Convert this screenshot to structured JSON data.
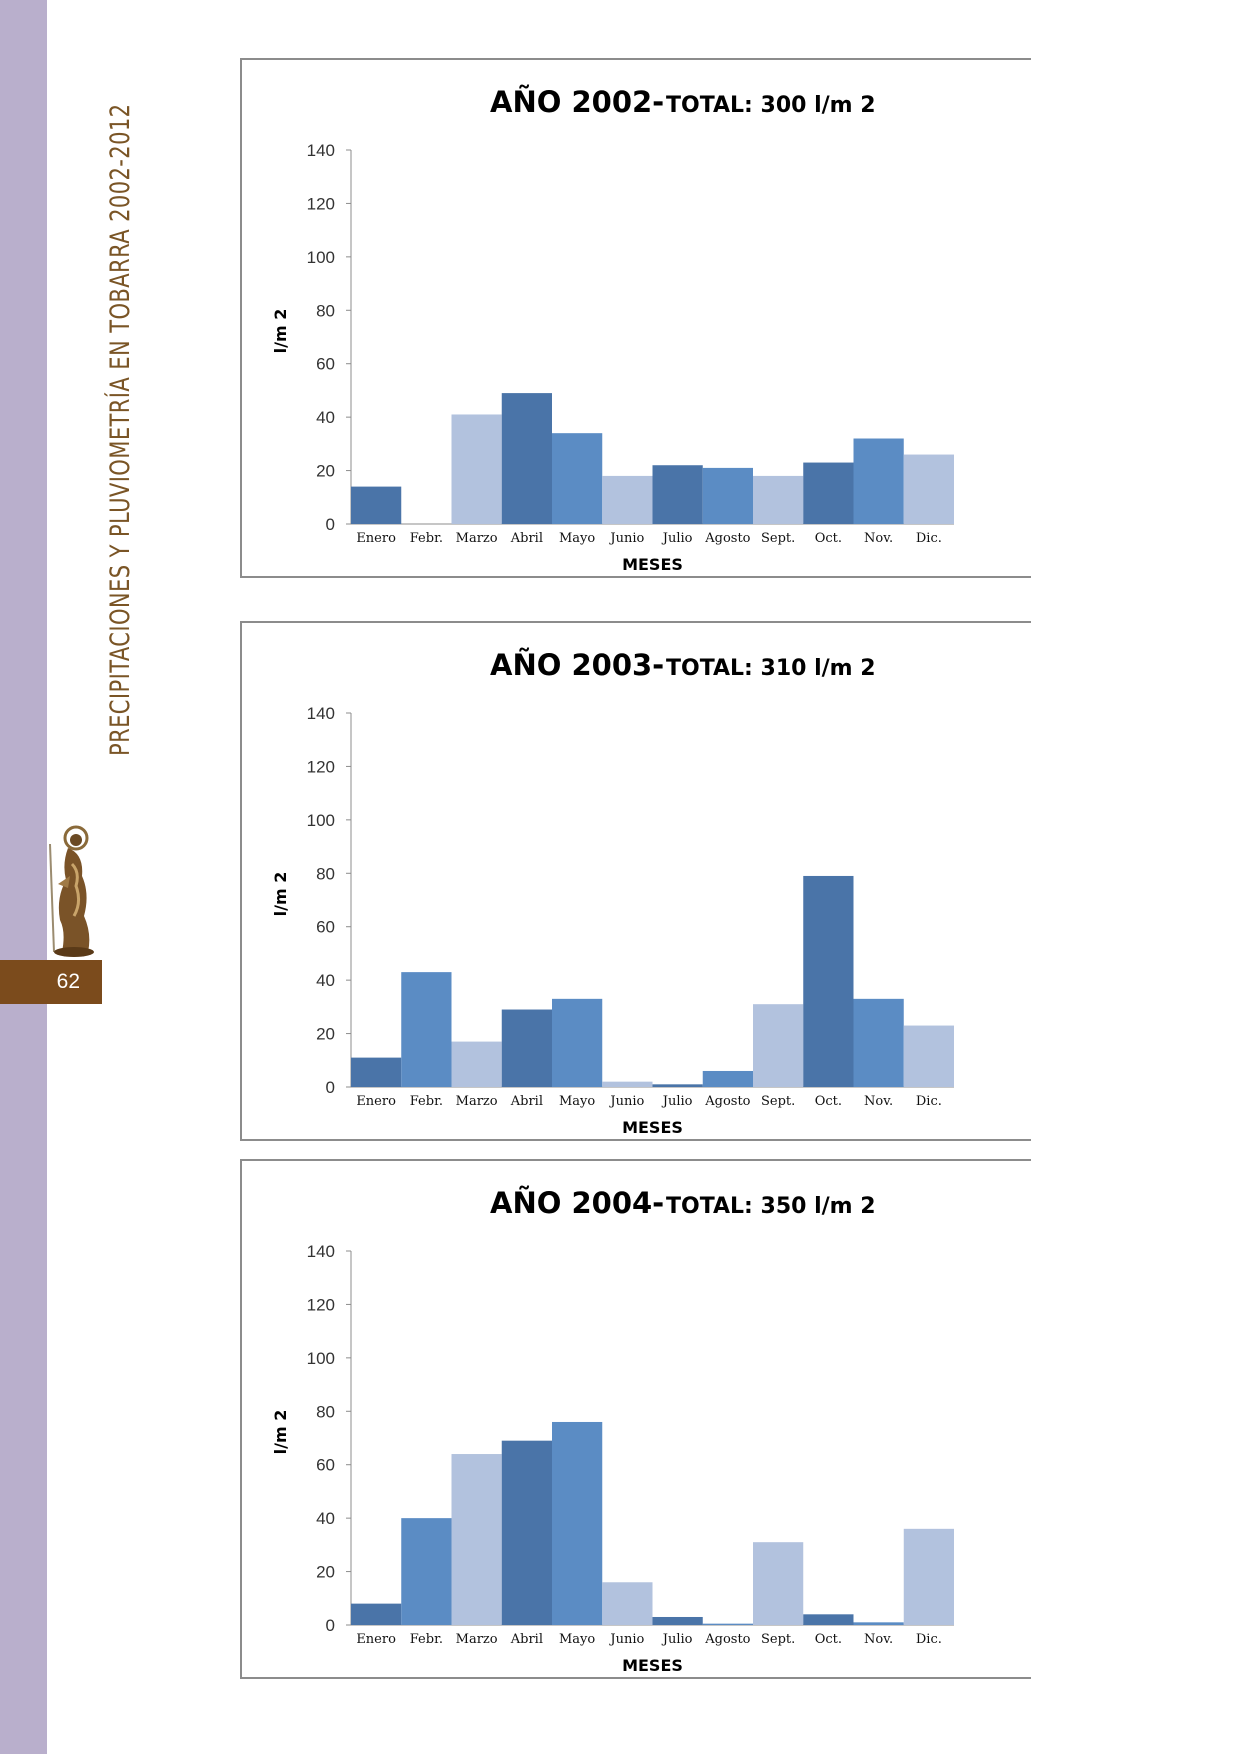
{
  "page": {
    "vertical_title": "PRECIPITACIONES Y PLUVIOMETRÍA EN TOBARRA 2002-2012",
    "page_number": "62"
  },
  "colors": {
    "side_band": "#b9afcc",
    "brand_brown": "#7b4b1c",
    "bar_dark": "#4a74a8",
    "bar_medium": "#5b8cc4",
    "bar_light": "#b2c2de"
  },
  "chart_data": [
    {
      "type": "bar",
      "title": "AÑO 2002-",
      "subtitle": "TOTAL:  300  l/m 2",
      "xlabel": "MESES",
      "ylabel": "l/m 2",
      "ylim": [
        0,
        140
      ],
      "yticks": [
        0,
        20,
        40,
        60,
        80,
        100,
        120,
        140
      ],
      "categories": [
        "Enero",
        "Febr.",
        "Marzo",
        "Abril",
        "Mayo",
        "Junio",
        "Julio",
        "Agosto",
        "Sept.",
        "Oct.",
        "Nov.",
        "Dic."
      ],
      "values": [
        14,
        0,
        41,
        49,
        34,
        18,
        22,
        21,
        18,
        23,
        32,
        26
      ],
      "bar_shades": [
        "dark",
        "medium",
        "light",
        "dark",
        "medium",
        "light",
        "dark",
        "medium",
        "light",
        "dark",
        "medium",
        "light"
      ],
      "grid": false,
      "legend": "none"
    },
    {
      "type": "bar",
      "title": "AÑO 2003-",
      "subtitle": "TOTAL:  310  l/m 2",
      "xlabel": "MESES",
      "ylabel": "l/m 2",
      "ylim": [
        0,
        140
      ],
      "yticks": [
        0,
        20,
        40,
        60,
        80,
        100,
        120,
        140
      ],
      "categories": [
        "Enero",
        "Febr.",
        "Marzo",
        "Abril",
        "Mayo",
        "Junio",
        "Julio",
        "Agosto",
        "Sept.",
        "Oct.",
        "Nov.",
        "Dic."
      ],
      "values": [
        11,
        43,
        17,
        29,
        33,
        2,
        1,
        6,
        31,
        79,
        33,
        23
      ],
      "bar_shades": [
        "dark",
        "medium",
        "light",
        "dark",
        "medium",
        "light",
        "dark",
        "medium",
        "light",
        "dark",
        "medium",
        "light"
      ],
      "grid": false,
      "legend": "none"
    },
    {
      "type": "bar",
      "title": "AÑO 2004-",
      "subtitle": "TOTAL:  350  l/m 2",
      "xlabel": "MESES",
      "ylabel": "l/m 2",
      "ylim": [
        0,
        140
      ],
      "yticks": [
        0,
        20,
        40,
        60,
        80,
        100,
        120,
        140
      ],
      "categories": [
        "Enero",
        "Febr.",
        "Marzo",
        "Abril",
        "Mayo",
        "Junio",
        "Julio",
        "Agosto",
        "Sept.",
        "Oct.",
        "Nov.",
        "Dic."
      ],
      "values": [
        8,
        40,
        64,
        69,
        76,
        16,
        3,
        0.5,
        31,
        4,
        1,
        36
      ],
      "bar_shades": [
        "dark",
        "medium",
        "light",
        "dark",
        "medium",
        "light",
        "dark",
        "medium",
        "light",
        "dark",
        "medium",
        "light"
      ],
      "grid": false,
      "legend": "none"
    }
  ]
}
